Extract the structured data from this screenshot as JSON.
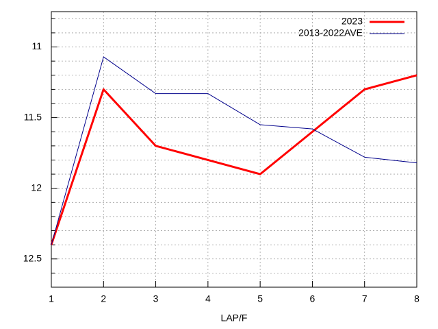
{
  "chart_data": {
    "type": "line",
    "xlabel": "LAP/F",
    "x": [
      1,
      2,
      3,
      4,
      5,
      6,
      7,
      8
    ],
    "xlim": [
      1,
      8
    ],
    "xticks": [
      1,
      2,
      3,
      4,
      5,
      6,
      7,
      8
    ],
    "ylim": [
      10.75,
      12.7
    ],
    "y_reversed": true,
    "yticks": [
      11,
      11.5,
      12,
      12.5
    ],
    "yminorticks": [
      10.8,
      10.9,
      11.1,
      11.2,
      11.3,
      11.4,
      11.6,
      11.7,
      11.8,
      11.9,
      12.1,
      12.2,
      12.3,
      12.4,
      12.6,
      12.7
    ],
    "grid": true,
    "legend": "top-right",
    "series": [
      {
        "name": "2023",
        "color": "#ff0000",
        "width": 3,
        "values": [
          12.4,
          11.3,
          11.7,
          11.8,
          11.9,
          11.6,
          11.3,
          11.2
        ]
      },
      {
        "name": "2013-2022AVE",
        "color": "#00008b",
        "width": 1,
        "values": [
          12.4,
          11.07,
          11.33,
          11.33,
          11.55,
          11.58,
          11.78,
          11.82
        ]
      }
    ]
  }
}
